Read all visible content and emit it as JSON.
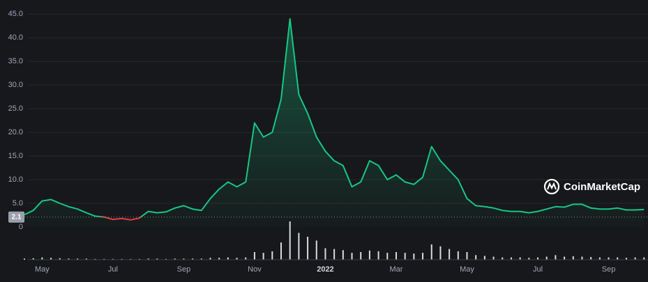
{
  "chart_data": {
    "type": "line",
    "categories": [
      null,
      null,
      "May",
      null,
      null,
      null,
      null,
      null,
      null,
      null,
      "Jul",
      null,
      null,
      null,
      null,
      null,
      null,
      null,
      "Sep",
      null,
      null,
      null,
      null,
      null,
      null,
      null,
      "Nov",
      null,
      null,
      null,
      null,
      null,
      null,
      null,
      "2022",
      null,
      null,
      null,
      null,
      null,
      null,
      null,
      "Mar",
      null,
      null,
      null,
      null,
      null,
      null,
      null,
      "May",
      null,
      null,
      null,
      null,
      null,
      null,
      null,
      "Jul",
      null,
      null,
      null,
      null,
      null,
      null,
      null,
      "Sep",
      null,
      null,
      null,
      null
    ],
    "values": [
      2.6,
      3.5,
      5.5,
      5.8,
      5,
      4.3,
      3.8,
      3,
      2.3,
      2.1,
      1.6,
      1.8,
      1.5,
      1.9,
      3.3,
      3,
      3.2,
      4,
      4.5,
      3.8,
      3.5,
      6,
      8,
      9.5,
      8.5,
      9.5,
      22,
      19,
      20,
      27,
      44,
      28,
      24,
      19,
      16,
      14,
      13,
      8.5,
      9.5,
      14,
      13,
      10,
      11,
      9.5,
      9,
      10.5,
      17,
      14,
      12,
      10,
      6,
      4.5,
      4.3,
      4,
      3.5,
      3.3,
      3.3,
      3,
      3.3,
      3.8,
      4.3,
      4.2,
      4.8,
      4.8,
      4,
      3.8,
      3.8,
      4,
      3.6,
      3.6,
      3.7
    ],
    "volume": [
      3,
      4,
      6,
      5,
      4,
      3,
      3,
      3,
      2,
      2,
      2,
      2,
      2,
      2,
      3,
      3,
      2,
      3,
      3,
      3,
      3,
      5,
      5,
      6,
      5,
      6,
      20,
      18,
      22,
      45,
      100,
      70,
      60,
      50,
      30,
      28,
      25,
      18,
      20,
      24,
      22,
      18,
      20,
      18,
      16,
      18,
      40,
      35,
      28,
      22,
      20,
      12,
      10,
      8,
      6,
      6,
      6,
      5,
      6,
      8,
      12,
      8,
      9,
      8,
      7,
      6,
      6,
      6,
      5,
      6,
      6
    ],
    "up_color": "#16c784",
    "down_color": "#ea3943",
    "baseline": 2.1,
    "baseline_label": "2.1",
    "ylim": [
      0,
      46.5
    ],
    "yticks": [
      0,
      {
        "value": 5,
        "label": "5.0"
      },
      {
        "value": 10,
        "label": "10.0"
      },
      {
        "value": 15,
        "label": "15.0"
      },
      {
        "value": 20,
        "label": "20.0"
      },
      {
        "value": 25,
        "label": "25.0"
      },
      {
        "value": 30,
        "label": "30.0"
      },
      {
        "value": 35,
        "label": "35.0"
      },
      {
        "value": 40,
        "label": "40.0"
      },
      {
        "value": 45,
        "label": "45.0"
      }
    ],
    "grid": true,
    "brand": "CoinMarketCap"
  }
}
